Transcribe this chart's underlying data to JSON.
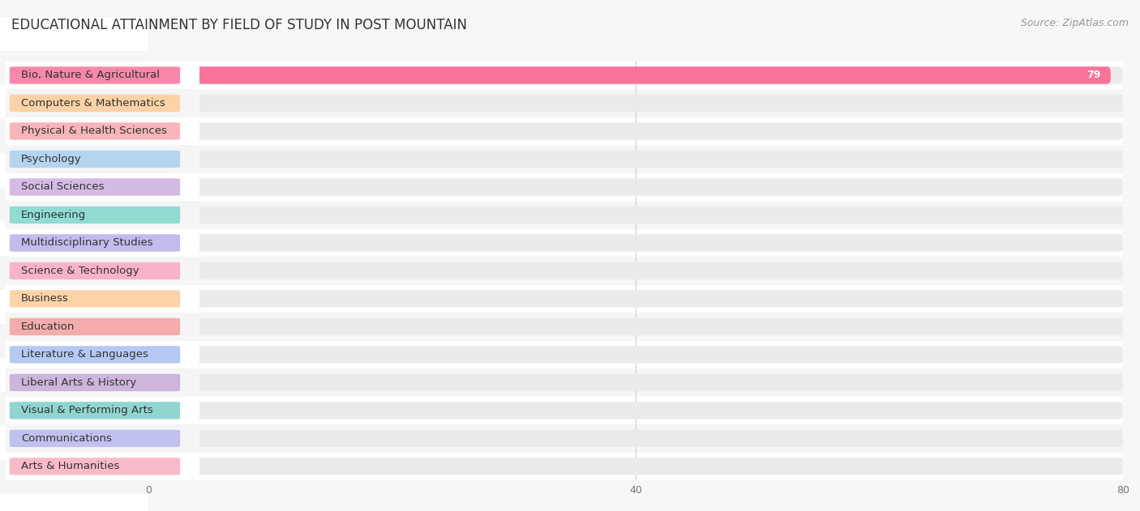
{
  "title": "EDUCATIONAL ATTAINMENT BY FIELD OF STUDY IN POST MOUNTAIN",
  "source": "Source: ZipAtlas.com",
  "categories": [
    "Bio, Nature & Agricultural",
    "Computers & Mathematics",
    "Physical & Health Sciences",
    "Psychology",
    "Social Sciences",
    "Engineering",
    "Multidisciplinary Studies",
    "Science & Technology",
    "Business",
    "Education",
    "Literature & Languages",
    "Liberal Arts & History",
    "Visual & Performing Arts",
    "Communications",
    "Arts & Humanities"
  ],
  "values": [
    79,
    0,
    0,
    0,
    0,
    0,
    0,
    0,
    0,
    0,
    0,
    0,
    0,
    0,
    0
  ],
  "bar_colors": [
    "#F7739A",
    "#FFCC99",
    "#F9A8B0",
    "#AACFEE",
    "#CDB0E0",
    "#7ED8CC",
    "#B8B0E8",
    "#F9A8C0",
    "#FFCC99",
    "#F5A0A0",
    "#AAC0F0",
    "#C8AAD8",
    "#7ECEC8",
    "#B8B8F0",
    "#F9B0C0"
  ],
  "background_color": "#F7F7F7",
  "bar_bg_color": "#EBEBEB",
  "row_even_color": "#FFFFFF",
  "row_odd_color": "#F5F5F5",
  "xlim": [
    0,
    80
  ],
  "xticks": [
    0,
    40,
    80
  ],
  "title_fontsize": 12,
  "label_fontsize": 9.5,
  "tick_fontsize": 9,
  "source_fontsize": 9
}
